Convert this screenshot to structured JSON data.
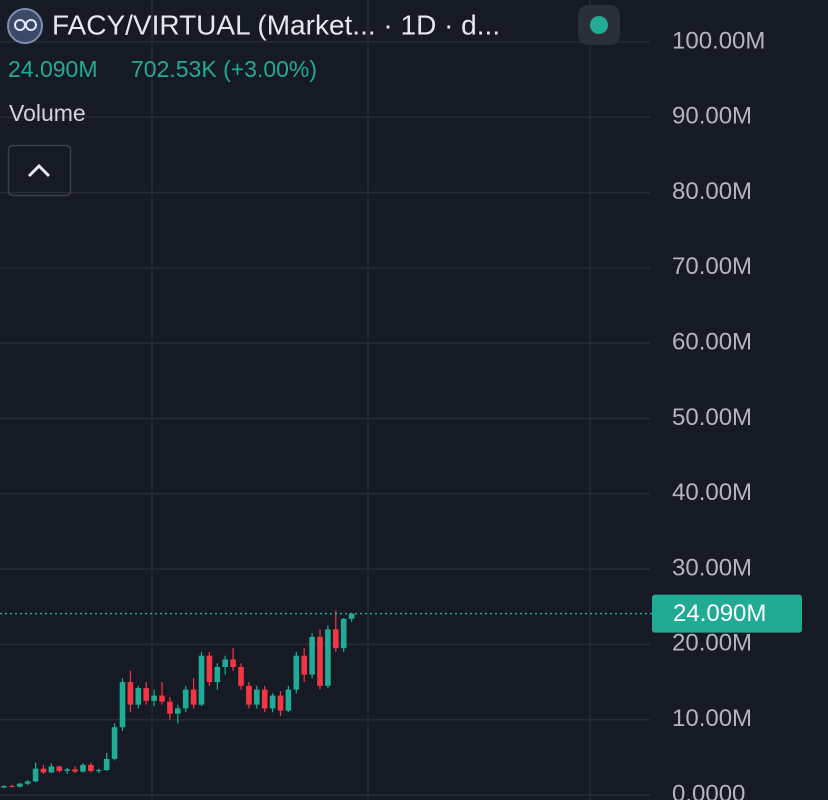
{
  "header": {
    "title": "FACY/VIRTUAL (Market... · 1D · d...",
    "price": "24.090M",
    "change": "702.53K (+3.00%)",
    "indicator": "Volume"
  },
  "chart_data": {
    "type": "candlestick",
    "open": [
      1.0,
      1.2,
      1.1,
      1.5,
      1.8,
      3.5,
      3.0,
      3.8,
      3.2,
      3.4,
      3.1,
      4.0,
      3.2,
      3.3,
      4.8,
      9.0,
      15.0,
      12.0,
      14.2,
      12.5,
      13.2,
      12.4,
      10.8,
      11.5,
      14.0,
      12.0,
      18.5,
      15.0,
      17.0,
      18.0,
      17.0,
      14.5,
      12.0,
      14.0,
      11.5,
      13.2,
      11.2,
      14.0,
      18.5,
      16.0,
      21.0,
      14.5,
      22.0,
      19.5,
      23.4
    ],
    "high": [
      1.3,
      1.4,
      1.6,
      2.0,
      4.3,
      4.0,
      4.2,
      3.9,
      3.6,
      3.8,
      4.2,
      4.3,
      3.5,
      5.6,
      9.5,
      15.5,
      16.5,
      14.5,
      15.0,
      14.0,
      15.0,
      13.0,
      12.0,
      14.5,
      15.5,
      19.0,
      19.0,
      17.5,
      18.5,
      19.5,
      17.5,
      15.0,
      14.5,
      14.5,
      13.5,
      13.8,
      14.5,
      19.0,
      19.5,
      21.5,
      22.0,
      22.5,
      24.5,
      23.5,
      24.2
    ],
    "low": [
      0.9,
      1.0,
      1.0,
      1.3,
      1.7,
      2.8,
      2.9,
      3.0,
      2.8,
      2.9,
      3.0,
      3.0,
      2.9,
      3.2,
      4.6,
      8.5,
      11.0,
      11.5,
      12.0,
      11.8,
      12.0,
      10.0,
      9.5,
      11.0,
      11.5,
      11.8,
      14.5,
      14.0,
      16.0,
      16.5,
      14.0,
      11.5,
      11.5,
      11.0,
      11.0,
      10.5,
      11.0,
      13.5,
      15.0,
      15.5,
      14.0,
      14.2,
      19.0,
      19.0,
      23.0
    ],
    "close": [
      1.2,
      1.1,
      1.5,
      1.8,
      3.5,
      3.0,
      3.8,
      3.2,
      3.4,
      3.1,
      4.0,
      3.2,
      3.3,
      4.8,
      9.0,
      15.0,
      12.0,
      14.2,
      12.5,
      13.2,
      12.4,
      10.8,
      11.5,
      14.0,
      12.0,
      18.5,
      15.0,
      17.0,
      18.0,
      17.0,
      14.5,
      12.0,
      14.0,
      11.5,
      13.2,
      11.2,
      14.0,
      18.5,
      16.0,
      21.0,
      14.5,
      22.0,
      19.5,
      23.4,
      24.09
    ],
    "up_color": "#22ab94",
    "down_color": "#f23645",
    "ylim": [
      0,
      100
    ],
    "yticks": [
      {
        "value": 0,
        "label": "0.0000"
      },
      {
        "value": 10,
        "label": "10.00M"
      },
      {
        "value": 20,
        "label": "20.00M"
      },
      {
        "value": 30,
        "label": "30.00M"
      },
      {
        "value": 40,
        "label": "40.00M"
      },
      {
        "value": 50,
        "label": "50.00M"
      },
      {
        "value": 60,
        "label": "60.00M"
      },
      {
        "value": 70,
        "label": "70.00M"
      },
      {
        "value": 80,
        "label": "80.00M"
      },
      {
        "value": 90,
        "label": "90.00M"
      },
      {
        "value": 100,
        "label": "100.00M"
      }
    ],
    "last_price": {
      "value": 24.09,
      "label": "24.090M"
    },
    "grid": true
  }
}
